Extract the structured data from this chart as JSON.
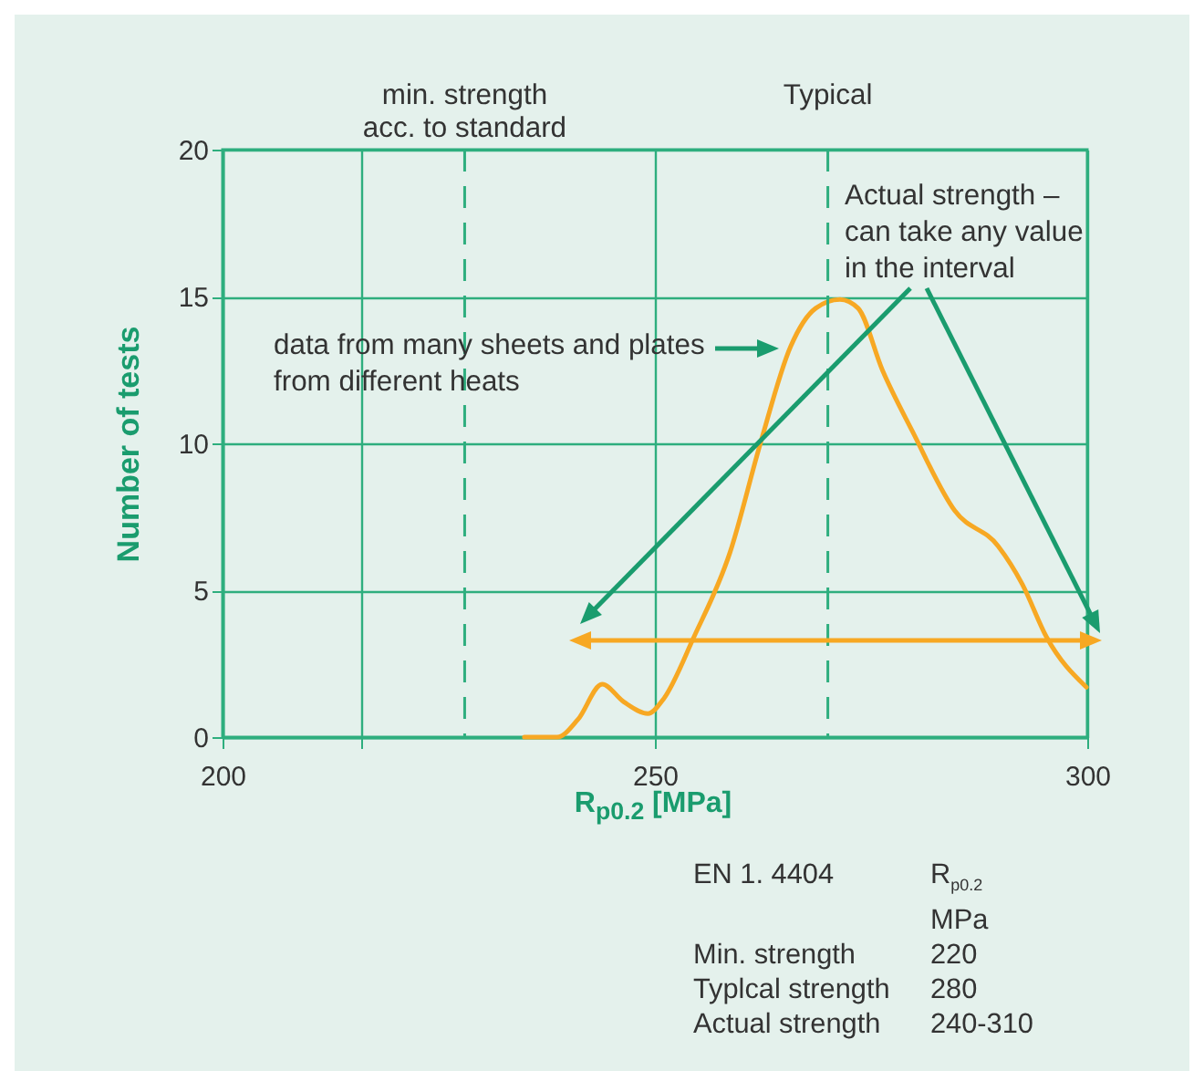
{
  "chart_data": {
    "type": "line",
    "xlabel": "R$_{p0.2}$ [MPa]",
    "ylabel": "Number of tests",
    "x": [
      234.9,
      238.7,
      241.1,
      243.9,
      246.4,
      249.2,
      251.0,
      254.5,
      258.7,
      262.2,
      265.7,
      268.6,
      271.4,
      273.5,
      276.3,
      279.8,
      284.7,
      289.7,
      292.5,
      295.3,
      299.9
    ],
    "series": [
      {
        "color": "#f7a823",
        "values": [
          0,
          0,
          0.6,
          1.8,
          1.2,
          0.8,
          1.3,
          3.4,
          6.3,
          10.0,
          13.3,
          14.6,
          14.9,
          14.6,
          12.5,
          10.4,
          7.7,
          6.5,
          5.2,
          3.4,
          1.7
        ]
      }
    ],
    "xlim": [
      200,
      300
    ],
    "xticks": [
      200,
      {
        "value": 216,
        "label": null
      },
      250,
      300
    ],
    "ylim": [
      0,
      20
    ],
    "yticks": [
      0,
      5,
      10,
      15,
      20
    ],
    "grid": true,
    "marker": "none",
    "line_style": "solid",
    "ref_lines": [
      {
        "axis": "x",
        "value": 228,
        "label": "min. strength\nacc. to standard",
        "color": "#2eae7e",
        "line_style": "dashed"
      },
      {
        "axis": "x",
        "value": 270,
        "label": "Typical",
        "color": "#2eae7e",
        "line_style": "dashed"
      }
    ],
    "annotations": [
      "data from many sheets and plates\nfrom different heats",
      "Actual strength –\ncan take any value\nin the interval",
      "EN 1. 4404",
      "R$_{p0.2}$\nMPa",
      "Min. strength",
      "220",
      "Typlcal strength",
      "280",
      "Actual strength",
      "240-310"
    ]
  }
}
